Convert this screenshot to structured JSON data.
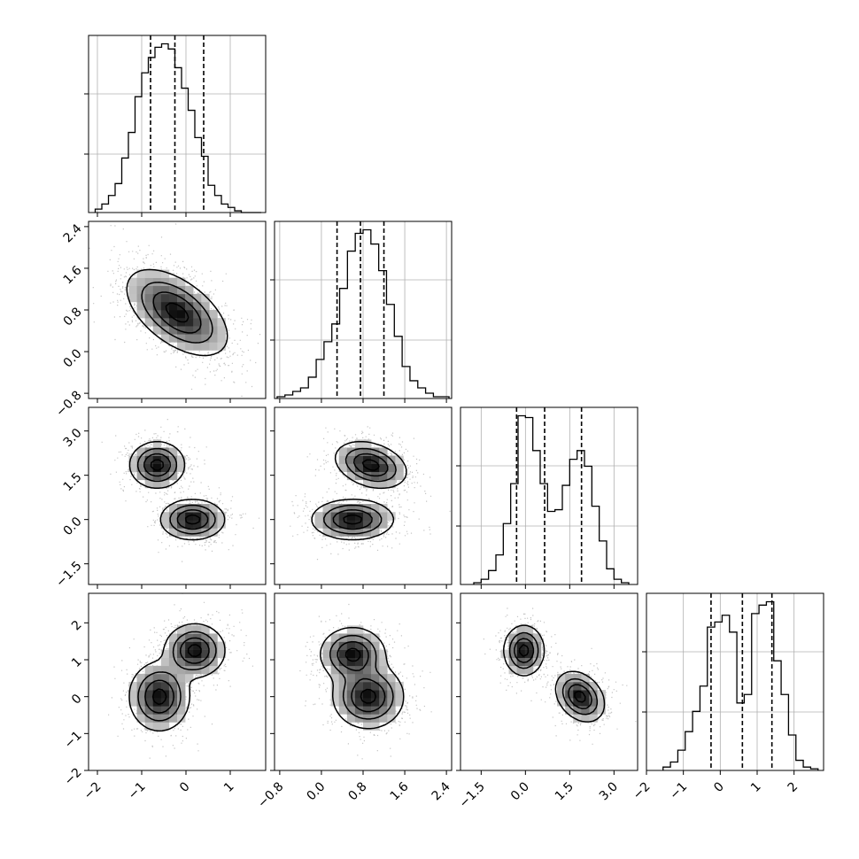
{
  "chart_data": {
    "type": "corner",
    "parameters": 4,
    "histograms": [
      {
        "param": 0,
        "x_range": [
          -2.2,
          1.8
        ],
        "bin_edges": [
          -2.05,
          -1.9,
          -1.75,
          -1.6,
          -1.45,
          -1.3,
          -1.15,
          -1.0,
          -0.85,
          -0.7,
          -0.55,
          -0.4,
          -0.25,
          -0.1,
          0.05,
          0.2,
          0.35,
          0.5,
          0.65,
          0.8,
          0.95,
          1.1,
          1.25,
          1.4,
          1.55,
          1.7
        ],
        "counts": [
          0.02,
          0.05,
          0.1,
          0.17,
          0.32,
          0.47,
          0.68,
          0.82,
          0.91,
          0.97,
          0.99,
          0.96,
          0.85,
          0.73,
          0.6,
          0.44,
          0.33,
          0.16,
          0.1,
          0.05,
          0.03,
          0.01,
          0,
          0,
          0
        ],
        "quantiles": [
          -0.8,
          -0.25,
          0.4
        ]
      },
      {
        "param": 1,
        "x_range": [
          -0.9,
          2.5
        ],
        "bin_edges": [
          -0.85,
          -0.7,
          -0.55,
          -0.4,
          -0.25,
          -0.1,
          0.05,
          0.2,
          0.35,
          0.5,
          0.65,
          0.8,
          0.95,
          1.1,
          1.25,
          1.4,
          1.55,
          1.7,
          1.85,
          2.0,
          2.15,
          2.3,
          2.45
        ],
        "counts": [
          0.01,
          0.02,
          0.04,
          0.06,
          0.12,
          0.22,
          0.32,
          0.42,
          0.62,
          0.83,
          0.93,
          0.95,
          0.87,
          0.72,
          0.53,
          0.35,
          0.18,
          0.1,
          0.06,
          0.03,
          0.01,
          0.01
        ],
        "quantiles": [
          0.3,
          0.75,
          1.2
        ]
      },
      {
        "param": 2,
        "x_range": [
          -2.2,
          3.8
        ],
        "bin_edges": [
          -1.75,
          -1.5,
          -1.25,
          -1.0,
          -0.75,
          -0.5,
          -0.25,
          0.0,
          0.25,
          0.5,
          0.75,
          1.0,
          1.25,
          1.5,
          1.75,
          2.0,
          2.25,
          2.5,
          2.75,
          3.0,
          3.25,
          3.5
        ],
        "counts": [
          0.01,
          0.03,
          0.08,
          0.17,
          0.35,
          0.58,
          0.97,
          0.96,
          0.77,
          0.58,
          0.42,
          0.43,
          0.57,
          0.72,
          0.77,
          0.68,
          0.45,
          0.25,
          0.09,
          0.03,
          0.01
        ],
        "quantiles": [
          -0.3,
          0.65,
          1.9
        ]
      },
      {
        "param": 3,
        "x_range": [
          -2.0,
          2.8
        ],
        "bin_edges": [
          -1.55,
          -1.35,
          -1.15,
          -0.95,
          -0.75,
          -0.55,
          -0.35,
          -0.15,
          0.05,
          0.25,
          0.45,
          0.65,
          0.85,
          1.05,
          1.25,
          1.45,
          1.65,
          1.85,
          2.05,
          2.25,
          2.45,
          2.65
        ],
        "counts": [
          0.02,
          0.05,
          0.12,
          0.23,
          0.35,
          0.5,
          0.85,
          0.88,
          0.92,
          0.82,
          0.4,
          0.45,
          0.93,
          0.98,
          1.0,
          0.65,
          0.45,
          0.21,
          0.06,
          0.02,
          0.01
        ],
        "quantiles": [
          -0.25,
          0.6,
          1.4
        ]
      }
    ],
    "scatter_panels": [
      {
        "x_param": 0,
        "y_param": 1,
        "x_range": [
          -2.2,
          1.8
        ],
        "y_range": [
          -0.9,
          2.5
        ],
        "modes": [
          {
            "mean": [
              -0.2,
              0.75
            ],
            "sd": [
              0.55,
              0.4
            ],
            "rho": -0.55,
            "weight": 1.0
          }
        ]
      },
      {
        "x_param": 0,
        "y_param": 2,
        "x_range": [
          -2.2,
          1.8
        ],
        "y_range": [
          -2.2,
          3.8
        ],
        "modes": [
          {
            "mean": [
              -0.65,
              1.85
            ],
            "sd": [
              0.3,
              0.38
            ],
            "rho": 0,
            "weight": 0.5
          },
          {
            "mean": [
              0.15,
              0.0
            ],
            "sd": [
              0.35,
              0.33
            ],
            "rho": 0,
            "weight": 0.5
          }
        ]
      },
      {
        "x_param": 1,
        "y_param": 2,
        "x_range": [
          -0.9,
          2.5
        ],
        "y_range": [
          -2.2,
          3.8
        ],
        "modes": [
          {
            "mean": [
              0.95,
              1.85
            ],
            "sd": [
              0.33,
              0.38
            ],
            "rho": -0.3,
            "weight": 0.5
          },
          {
            "mean": [
              0.6,
              0.0
            ],
            "sd": [
              0.38,
              0.33
            ],
            "rho": 0,
            "weight": 0.5
          }
        ]
      },
      {
        "x_param": 0,
        "y_param": 3,
        "x_range": [
          -2.2,
          1.8
        ],
        "y_range": [
          -2.0,
          2.8
        ],
        "modes": [
          {
            "mean": [
              -0.6,
              0.0
            ],
            "sd": [
              0.33,
              0.45
            ],
            "rho": 0,
            "weight": 0.5
          },
          {
            "mean": [
              0.2,
              1.25
            ],
            "sd": [
              0.33,
              0.35
            ],
            "rho": 0,
            "weight": 0.5
          }
        ]
      },
      {
        "x_param": 1,
        "y_param": 3,
        "x_range": [
          -0.9,
          2.5
        ],
        "y_range": [
          -2.0,
          2.8
        ],
        "modes": [
          {
            "mean": [
              0.6,
              1.15
            ],
            "sd": [
              0.3,
              0.35
            ],
            "rho": 0,
            "weight": 0.5
          },
          {
            "mean": [
              0.9,
              0.0
            ],
            "sd": [
              0.33,
              0.42
            ],
            "rho": 0,
            "weight": 0.5
          }
        ]
      },
      {
        "x_param": 2,
        "y_param": 3,
        "x_range": [
          -2.2,
          3.8
        ],
        "y_range": [
          -2.0,
          2.8
        ],
        "modes": [
          {
            "mean": [
              -0.05,
              1.25
            ],
            "sd": [
              0.33,
              0.33
            ],
            "rho": 0,
            "weight": 0.5
          },
          {
            "mean": [
              1.85,
              0.0
            ],
            "sd": [
              0.4,
              0.33
            ],
            "rho": -0.3,
            "weight": 0.5
          }
        ]
      }
    ],
    "axis_ticks": [
      {
        "values": [
          -2,
          -1,
          0,
          1
        ],
        "labels": [
          "−2",
          "−1",
          "0",
          "1"
        ]
      },
      {
        "values": [
          -0.8,
          0.0,
          0.8,
          1.6,
          2.4
        ],
        "labels": [
          "−0.8",
          "0.0",
          "0.8",
          "1.6",
          "2.4"
        ]
      },
      {
        "values": [
          -1.5,
          0.0,
          1.5,
          3.0
        ],
        "labels": [
          "−1.5",
          "0.0",
          "1.5",
          "3.0"
        ]
      },
      {
        "values": [
          -2,
          -1,
          0,
          1,
          2
        ],
        "labels": [
          "−2",
          "−1",
          "0",
          "1",
          "2"
        ]
      }
    ],
    "histogram_grid_fractions": [
      0.33,
      0.67
    ],
    "grid": true,
    "colors": {
      "line": "#000000",
      "grid": "#b0b0b0",
      "points": "#555555"
    }
  }
}
